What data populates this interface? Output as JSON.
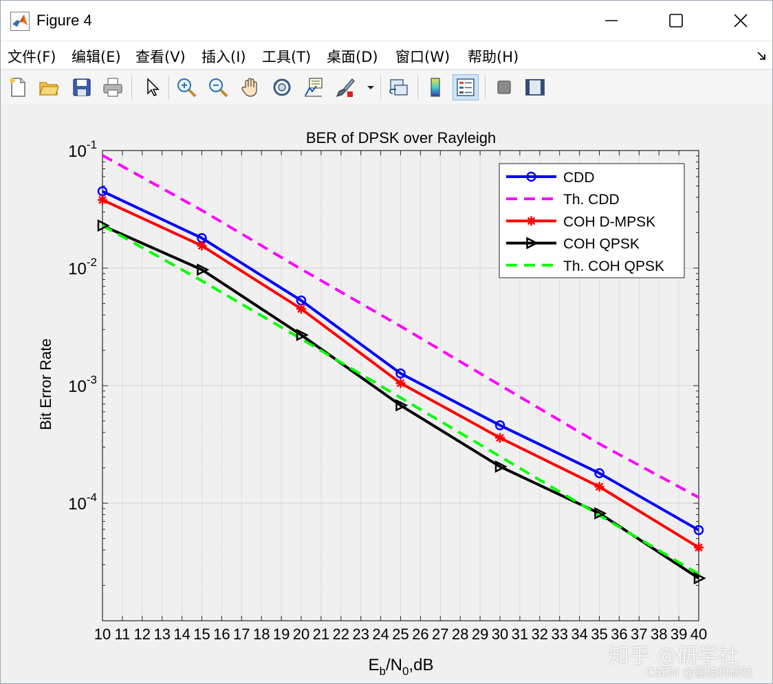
{
  "window": {
    "title": "Figure 4"
  },
  "menu": [
    "文件(F)",
    "编辑(E)",
    "查看(V)",
    "插入(I)",
    "工具(T)",
    "桌面(D)",
    "窗口(W)",
    "帮助(H)"
  ],
  "toolbar": {
    "icons": [
      "new-file-icon",
      "open-folder-icon",
      "save-icon",
      "print-icon",
      "pointer-icon",
      "zoom-in-icon",
      "zoom-out-icon",
      "pan-hand-icon",
      "rotate-3d-icon",
      "data-cursor-icon",
      "brush-icon",
      "brush-dropdown-icon",
      "link-plot-icon",
      "colorbar-icon",
      "legend-icon",
      "hide-plot-tools-icon",
      "show-plot-tools-icon"
    ]
  },
  "watermark": {
    "text1": "知乎 @研学社",
    "text2": "CSDN @荔枝科研社"
  },
  "chart_data": {
    "type": "line",
    "title": "BER of DPSK over Rayleigh",
    "xlabel_main": "E",
    "xlabel_sub1": "b",
    "xlabel_mid": "/N",
    "xlabel_sub2": "0",
    "xlabel_tail": ",dB",
    "ylabel": "Bit Error Rate",
    "xlim": [
      10,
      40
    ],
    "ylim": [
      1e-05,
      0.1
    ],
    "yscale": "log",
    "grid": true,
    "minor_grid": true,
    "xticks": [
      10,
      11,
      12,
      13,
      14,
      15,
      16,
      17,
      18,
      19,
      20,
      21,
      22,
      23,
      24,
      25,
      26,
      27,
      28,
      29,
      30,
      31,
      32,
      33,
      34,
      35,
      36,
      37,
      38,
      39,
      40
    ],
    "yticks": [
      {
        "base": "10",
        "exp": "-4",
        "value": 0.0001
      },
      {
        "base": "10",
        "exp": "-3",
        "value": 0.001
      },
      {
        "base": "10",
        "exp": "-2",
        "value": 0.01
      },
      {
        "base": "10",
        "exp": "-1",
        "value": 0.1
      }
    ],
    "legend_position": "top-right",
    "series": [
      {
        "name": "CDD",
        "color": "#0000ff",
        "style": "solid",
        "marker": "circle",
        "x": [
          10,
          15,
          20,
          25,
          30,
          35,
          40
        ],
        "y": [
          0.045,
          0.018,
          0.0053,
          0.00127,
          0.00046,
          0.00018,
          5.9e-05
        ]
      },
      {
        "name": "Th. CDD",
        "color": "#ff00ff",
        "style": "dashed",
        "marker": "none",
        "x": [
          10,
          15,
          20,
          25,
          30,
          35,
          40
        ],
        "y": [
          0.091,
          0.031,
          0.0098,
          0.0032,
          0.00101,
          0.00032,
          0.000112
        ]
      },
      {
        "name": "COH D-MPSK",
        "color": "#ff0000",
        "style": "solid",
        "marker": "asterisk",
        "x": [
          10,
          15,
          20,
          25,
          30,
          35,
          40
        ],
        "y": [
          0.038,
          0.0155,
          0.0045,
          0.00105,
          0.00036,
          0.000138,
          4.2e-05
        ]
      },
      {
        "name": "COH QPSK",
        "color": "#000000",
        "style": "solid",
        "marker": "triangle-right",
        "x": [
          10,
          15,
          20,
          25,
          30,
          35,
          40
        ],
        "y": [
          0.023,
          0.0097,
          0.0027,
          0.00068,
          0.000205,
          8.2e-05,
          2.3e-05
        ]
      },
      {
        "name": "Th. COH QPSK",
        "color": "#00ff00",
        "style": "dashed",
        "marker": "none",
        "x": [
          10,
          15,
          20,
          25,
          30,
          35,
          40
        ],
        "y": [
          0.023,
          0.0078,
          0.0025,
          0.00079,
          0.00025,
          7.9e-05,
          2.5e-05
        ]
      }
    ]
  }
}
